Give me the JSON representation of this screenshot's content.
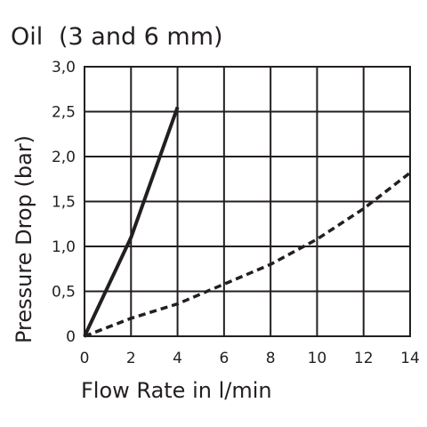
{
  "chart_data": {
    "type": "line",
    "title": "Oil",
    "subtitle": "(3 and 6 mm)",
    "xlabel": "Flow Rate in l/min",
    "ylabel": "Pressure Drop (bar)",
    "xlim": [
      0,
      14
    ],
    "ylim": [
      0,
      3.0
    ],
    "xticks": [
      0,
      2,
      4,
      6,
      8,
      10,
      12,
      14
    ],
    "xtick_labels": [
      "0",
      "2",
      "4",
      "6",
      "8",
      "10",
      "12",
      "14"
    ],
    "yticks": [
      0,
      0.5,
      1.0,
      1.5,
      2.0,
      2.5,
      3.0
    ],
    "ytick_labels": [
      "0",
      "0,5",
      "1,0",
      "1,5",
      "2,0",
      "2,5",
      "3,0"
    ],
    "grid": true,
    "series": [
      {
        "style": "solid",
        "color": "#231f20",
        "x": [
          0,
          2,
          4
        ],
        "y": [
          0,
          1.1,
          2.55
        ]
      },
      {
        "style": "dashed",
        "color": "#231f20",
        "x": [
          0,
          2,
          4,
          6,
          8,
          10,
          12,
          14
        ],
        "y": [
          0,
          0.2,
          0.36,
          0.58,
          0.8,
          1.08,
          1.42,
          1.82
        ]
      }
    ]
  }
}
